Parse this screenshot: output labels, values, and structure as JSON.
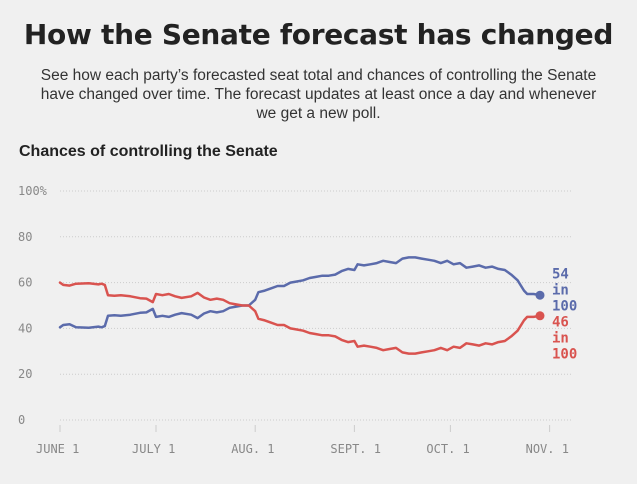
{
  "header": {
    "title": "How the Senate forecast has changed",
    "subtitle_lines": [
      "See how each party’s forecasted seat total and chances of controlling the Senate",
      "have changed over time. The forecast updates at least once a day and whenever",
      "we get a new poll."
    ]
  },
  "chart_section_title": "Chances of controlling the Senate",
  "colors": {
    "blue": "#5b6bab",
    "red": "#d9534f",
    "grid": "#cccccc",
    "axis_text": "#888888"
  },
  "chart_data": {
    "type": "line",
    "title": "Chances of controlling the Senate",
    "xlabel": "",
    "ylabel": "",
    "ylim": [
      0,
      100
    ],
    "y_ticks": [
      0,
      20,
      40,
      60,
      80,
      100
    ],
    "y_tick_labels": [
      "0",
      "20",
      "40",
      "60",
      "80",
      "100%"
    ],
    "x_ticks": [
      "2016-06-01",
      "2016-07-01",
      "2016-08-01",
      "2016-09-01",
      "2016-10-01",
      "2016-11-01"
    ],
    "x_tick_labels": [
      "JUNE 1",
      "JULY 1",
      "AUG. 1",
      "SEPT. 1",
      "OCT. 1",
      "NOV. 1"
    ],
    "xlim": [
      "2016-06-01",
      "2016-11-08"
    ],
    "grid": true,
    "legend": "none",
    "series": [
      {
        "color": "#5b6bab",
        "end_label": [
          "54",
          "in",
          "100"
        ],
        "points": [
          [
            "2016-06-01",
            40.5
          ],
          [
            "2016-06-02",
            41.5
          ],
          [
            "2016-06-04",
            41.8
          ],
          [
            "2016-06-06",
            40.5
          ],
          [
            "2016-06-10",
            40.3
          ],
          [
            "2016-06-13",
            40.8
          ],
          [
            "2016-06-14",
            40.5
          ],
          [
            "2016-06-15",
            41.0
          ],
          [
            "2016-06-16",
            45.5
          ],
          [
            "2016-06-18",
            45.7
          ],
          [
            "2016-06-20",
            45.5
          ],
          [
            "2016-06-23",
            46.0
          ],
          [
            "2016-06-26",
            46.8
          ],
          [
            "2016-06-28",
            47.0
          ],
          [
            "2016-06-30",
            48.5
          ],
          [
            "2016-07-01",
            45.0
          ],
          [
            "2016-07-03",
            45.5
          ],
          [
            "2016-07-05",
            45.0
          ],
          [
            "2016-07-07",
            46.0
          ],
          [
            "2016-07-09",
            46.7
          ],
          [
            "2016-07-12",
            46.0
          ],
          [
            "2016-07-14",
            44.5
          ],
          [
            "2016-07-16",
            46.5
          ],
          [
            "2016-07-18",
            47.5
          ],
          [
            "2016-07-20",
            47.0
          ],
          [
            "2016-07-22",
            47.5
          ],
          [
            "2016-07-24",
            49.0
          ],
          [
            "2016-07-26",
            49.5
          ],
          [
            "2016-07-28",
            50.0
          ],
          [
            "2016-07-30",
            50.0
          ],
          [
            "2016-08-01",
            52.5
          ],
          [
            "2016-08-02",
            55.8
          ],
          [
            "2016-08-04",
            56.5
          ],
          [
            "2016-08-06",
            57.5
          ],
          [
            "2016-08-08",
            58.5
          ],
          [
            "2016-08-10",
            58.5
          ],
          [
            "2016-08-12",
            60.0
          ],
          [
            "2016-08-14",
            60.5
          ],
          [
            "2016-08-16",
            61.0
          ],
          [
            "2016-08-18",
            62.0
          ],
          [
            "2016-08-20",
            62.5
          ],
          [
            "2016-08-22",
            63.0
          ],
          [
            "2016-08-24",
            63.0
          ],
          [
            "2016-08-26",
            63.5
          ],
          [
            "2016-08-28",
            65.0
          ],
          [
            "2016-08-30",
            66.0
          ],
          [
            "2016-09-01",
            65.5
          ],
          [
            "2016-09-02",
            68.0
          ],
          [
            "2016-09-04",
            67.5
          ],
          [
            "2016-09-06",
            68.0
          ],
          [
            "2016-09-08",
            68.5
          ],
          [
            "2016-09-10",
            69.5
          ],
          [
            "2016-09-12",
            69.0
          ],
          [
            "2016-09-14",
            68.5
          ],
          [
            "2016-09-16",
            70.5
          ],
          [
            "2016-09-18",
            71.0
          ],
          [
            "2016-09-20",
            71.0
          ],
          [
            "2016-09-22",
            70.5
          ],
          [
            "2016-09-24",
            70.0
          ],
          [
            "2016-09-26",
            69.5
          ],
          [
            "2016-09-28",
            68.5
          ],
          [
            "2016-09-30",
            69.5
          ],
          [
            "2016-10-02",
            68.0
          ],
          [
            "2016-10-04",
            68.5
          ],
          [
            "2016-10-06",
            66.5
          ],
          [
            "2016-10-08",
            67.0
          ],
          [
            "2016-10-10",
            67.5
          ],
          [
            "2016-10-12",
            66.5
          ],
          [
            "2016-10-14",
            67.0
          ],
          [
            "2016-10-16",
            66.0
          ],
          [
            "2016-10-18",
            65.5
          ],
          [
            "2016-10-20",
            63.5
          ],
          [
            "2016-10-22",
            61.0
          ],
          [
            "2016-10-24",
            56.5
          ],
          [
            "2016-10-25",
            55.0
          ],
          [
            "2016-10-27",
            55.0
          ],
          [
            "2016-10-29",
            54.5
          ]
        ]
      },
      {
        "color": "#d9534f",
        "end_label": [
          "46",
          "in",
          "100"
        ],
        "points": [
          [
            "2016-06-01",
            60.0
          ],
          [
            "2016-06-02",
            59.0
          ],
          [
            "2016-06-04",
            58.7
          ],
          [
            "2016-06-06",
            59.5
          ],
          [
            "2016-06-10",
            59.7
          ],
          [
            "2016-06-13",
            59.2
          ],
          [
            "2016-06-14",
            59.5
          ],
          [
            "2016-06-15",
            59.0
          ],
          [
            "2016-06-16",
            54.5
          ],
          [
            "2016-06-18",
            54.3
          ],
          [
            "2016-06-20",
            54.5
          ],
          [
            "2016-06-23",
            54.0
          ],
          [
            "2016-06-26",
            53.2
          ],
          [
            "2016-06-28",
            53.0
          ],
          [
            "2016-06-30",
            51.5
          ],
          [
            "2016-07-01",
            55.0
          ],
          [
            "2016-07-03",
            54.5
          ],
          [
            "2016-07-05",
            55.0
          ],
          [
            "2016-07-07",
            54.0
          ],
          [
            "2016-07-09",
            53.3
          ],
          [
            "2016-07-12",
            54.0
          ],
          [
            "2016-07-14",
            55.5
          ],
          [
            "2016-07-16",
            53.5
          ],
          [
            "2016-07-18",
            52.5
          ],
          [
            "2016-07-20",
            53.0
          ],
          [
            "2016-07-22",
            52.5
          ],
          [
            "2016-07-24",
            51.0
          ],
          [
            "2016-07-26",
            50.5
          ],
          [
            "2016-07-28",
            50.0
          ],
          [
            "2016-07-30",
            50.0
          ],
          [
            "2016-08-01",
            47.5
          ],
          [
            "2016-08-02",
            44.2
          ],
          [
            "2016-08-04",
            43.5
          ],
          [
            "2016-08-06",
            42.5
          ],
          [
            "2016-08-08",
            41.5
          ],
          [
            "2016-08-10",
            41.5
          ],
          [
            "2016-08-12",
            40.0
          ],
          [
            "2016-08-14",
            39.5
          ],
          [
            "2016-08-16",
            39.0
          ],
          [
            "2016-08-18",
            38.0
          ],
          [
            "2016-08-20",
            37.5
          ],
          [
            "2016-08-22",
            37.0
          ],
          [
            "2016-08-24",
            37.0
          ],
          [
            "2016-08-26",
            36.5
          ],
          [
            "2016-08-28",
            35.0
          ],
          [
            "2016-08-30",
            34.0
          ],
          [
            "2016-09-01",
            34.5
          ],
          [
            "2016-09-02",
            32.0
          ],
          [
            "2016-09-04",
            32.5
          ],
          [
            "2016-09-06",
            32.0
          ],
          [
            "2016-09-08",
            31.5
          ],
          [
            "2016-09-10",
            30.5
          ],
          [
            "2016-09-12",
            31.0
          ],
          [
            "2016-09-14",
            31.5
          ],
          [
            "2016-09-16",
            29.5
          ],
          [
            "2016-09-18",
            29.0
          ],
          [
            "2016-09-20",
            29.0
          ],
          [
            "2016-09-22",
            29.5
          ],
          [
            "2016-09-24",
            30.0
          ],
          [
            "2016-09-26",
            30.5
          ],
          [
            "2016-09-28",
            31.5
          ],
          [
            "2016-09-30",
            30.5
          ],
          [
            "2016-10-02",
            32.0
          ],
          [
            "2016-10-04",
            31.5
          ],
          [
            "2016-10-06",
            33.5
          ],
          [
            "2016-10-08",
            33.0
          ],
          [
            "2016-10-10",
            32.5
          ],
          [
            "2016-10-12",
            33.5
          ],
          [
            "2016-10-14",
            33.0
          ],
          [
            "2016-10-16",
            34.0
          ],
          [
            "2016-10-18",
            34.5
          ],
          [
            "2016-10-20",
            36.5
          ],
          [
            "2016-10-22",
            39.0
          ],
          [
            "2016-10-24",
            43.5
          ],
          [
            "2016-10-25",
            45.0
          ],
          [
            "2016-10-27",
            45.0
          ],
          [
            "2016-10-29",
            45.5
          ]
        ]
      }
    ]
  }
}
